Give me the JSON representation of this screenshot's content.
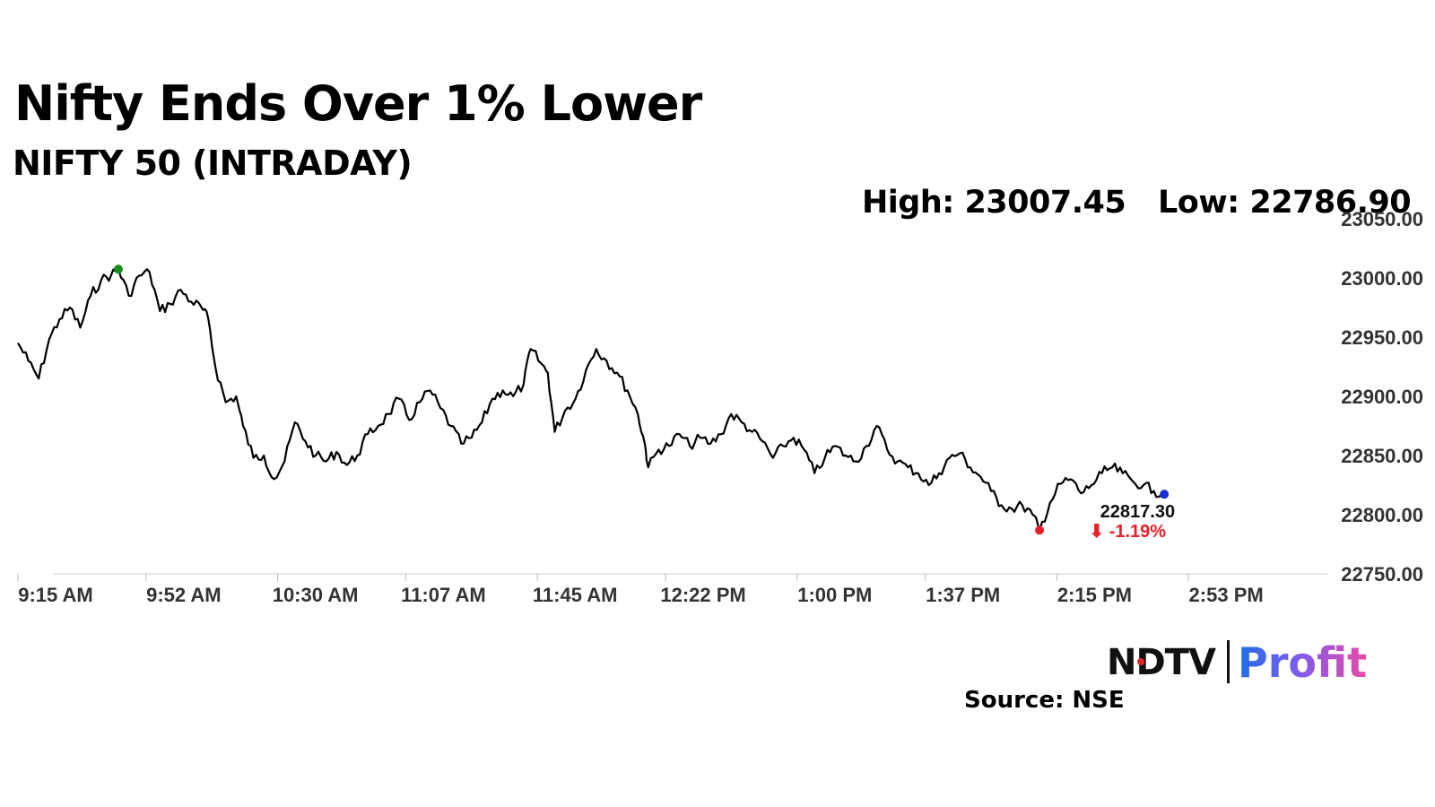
{
  "header": {
    "title": "Nifty Ends Over 1% Lower",
    "subtitle": "NIFTY 50 (INTRADAY)",
    "high": "High: 23007.45",
    "low": "Low: 22786.90"
  },
  "footer": {
    "source": "Source: NSE",
    "logo_ndtv": "NDTV",
    "logo_profit": "Profit"
  },
  "colors": {
    "line": "#000000",
    "high_marker": "#1a8a1a",
    "low_marker": "#e8202a",
    "last_marker": "#1a2ecc",
    "change": "#e8202a"
  },
  "chart_data": {
    "type": "line",
    "title": "NIFTY 50 (INTRADAY)",
    "xlabel": "",
    "ylabel": "",
    "x_ticks": [
      "9:15 AM",
      "9:52 AM",
      "10:30 AM",
      "11:07 AM",
      "11:45 AM",
      "12:22 PM",
      "1:00 PM",
      "1:37 PM",
      "2:15 PM",
      "2:53 PM"
    ],
    "y_ticks": [
      "22750.00",
      "22800.00",
      "22850.00",
      "22900.00",
      "22950.00",
      "23000.00",
      "23050.00"
    ],
    "ylim": [
      22750,
      23050
    ],
    "x_range": [
      "9:15 AM",
      "3:30 PM"
    ],
    "grid": false,
    "last_value_label": "22817.30",
    "change_label": "⬇ -1.19%",
    "series": [
      {
        "points": [
          [
            "9:15 AM",
            22945
          ],
          [
            "9:18 AM",
            22930
          ],
          [
            "9:21 AM",
            22915
          ],
          [
            "9:24 AM",
            22948
          ],
          [
            "9:27 AM",
            22965
          ],
          [
            "9:30 AM",
            22975
          ],
          [
            "9:33 AM",
            22958
          ],
          [
            "9:36 AM",
            22985
          ],
          [
            "9:39 AM",
            22998
          ],
          [
            "9:42 AM",
            23003
          ],
          [
            "9:44 AM",
            23007.45
          ],
          [
            "9:47 AM",
            22985
          ],
          [
            "9:50 AM",
            23002
          ],
          [
            "9:53 AM",
            23005
          ],
          [
            "9:56 AM",
            22972
          ],
          [
            "9:59 AM",
            22978
          ],
          [
            "10:02 AM",
            22990
          ],
          [
            "10:05 AM",
            22980
          ],
          [
            "10:08 AM",
            22975
          ],
          [
            "10:10 AM",
            22965
          ],
          [
            "10:12 AM",
            22925
          ],
          [
            "10:15 AM",
            22895
          ],
          [
            "10:18 AM",
            22900
          ],
          [
            "10:20 AM",
            22875
          ],
          [
            "10:23 AM",
            22848
          ],
          [
            "10:26 AM",
            22850
          ],
          [
            "10:29 AM",
            22830
          ],
          [
            "10:32 AM",
            22845
          ],
          [
            "10:35 AM",
            22878
          ],
          [
            "10:38 AM",
            22862
          ],
          [
            "10:41 AM",
            22850
          ],
          [
            "10:44 AM",
            22845
          ],
          [
            "10:47 AM",
            22853
          ],
          [
            "10:50 AM",
            22842
          ],
          [
            "10:53 AM",
            22850
          ],
          [
            "10:56 AM",
            22868
          ],
          [
            "10:59 AM",
            22875
          ],
          [
            "11:02 AM",
            22885
          ],
          [
            "11:05 AM",
            22898
          ],
          [
            "11:08 AM",
            22880
          ],
          [
            "11:11 AM",
            22895
          ],
          [
            "11:14 AM",
            22905
          ],
          [
            "11:17 AM",
            22890
          ],
          [
            "11:20 AM",
            22875
          ],
          [
            "11:23 AM",
            22860
          ],
          [
            "11:26 AM",
            22865
          ],
          [
            "11:29 AM",
            22878
          ],
          [
            "11:32 AM",
            22898
          ],
          [
            "11:35 AM",
            22905
          ],
          [
            "11:38 AM",
            22900
          ],
          [
            "11:41 AM",
            22910
          ],
          [
            "11:43 AM",
            22940
          ],
          [
            "11:46 AM",
            22928
          ],
          [
            "11:48 AM",
            22920
          ],
          [
            "11:50 AM",
            22870
          ],
          [
            "11:53 AM",
            22888
          ],
          [
            "11:56 AM",
            22898
          ],
          [
            "11:59 AM",
            22922
          ],
          [
            "12:02 PM",
            22940
          ],
          [
            "12:05 PM",
            22930
          ],
          [
            "12:08 PM",
            22920
          ],
          [
            "12:11 PM",
            22905
          ],
          [
            "12:14 PM",
            22885
          ],
          [
            "12:16 PM",
            22860
          ],
          [
            "12:17 PM",
            22840
          ],
          [
            "12:20 PM",
            22855
          ],
          [
            "12:23 PM",
            22858
          ],
          [
            "12:26 PM",
            22868
          ],
          [
            "12:29 PM",
            22858
          ],
          [
            "12:32 PM",
            22865
          ],
          [
            "12:35 PM",
            22860
          ],
          [
            "12:38 PM",
            22868
          ],
          [
            "12:41 PM",
            22885
          ],
          [
            "12:44 PM",
            22878
          ],
          [
            "12:47 PM",
            22870
          ],
          [
            "12:50 PM",
            22862
          ],
          [
            "12:53 PM",
            22848
          ],
          [
            "12:56 PM",
            22858
          ],
          [
            "12:59 PM",
            22865
          ],
          [
            "1:02 PM",
            22855
          ],
          [
            "1:05 PM",
            22835
          ],
          [
            "1:08 PM",
            22848
          ],
          [
            "1:11 PM",
            22858
          ],
          [
            "1:14 PM",
            22850
          ],
          [
            "1:17 PM",
            22845
          ],
          [
            "1:20 PM",
            22858
          ],
          [
            "1:23 PM",
            22875
          ],
          [
            "1:26 PM",
            22855
          ],
          [
            "1:29 PM",
            22845
          ],
          [
            "1:32 PM",
            22840
          ],
          [
            "1:35 PM",
            22835
          ],
          [
            "1:38 PM",
            22825
          ],
          [
            "1:41 PM",
            22835
          ],
          [
            "1:44 PM",
            22848
          ],
          [
            "1:47 PM",
            22852
          ],
          [
            "1:50 PM",
            22840
          ],
          [
            "1:53 PM",
            22832
          ],
          [
            "1:56 PM",
            22820
          ],
          [
            "1:59 PM",
            22808
          ],
          [
            "2:02 PM",
            22805
          ],
          [
            "2:05 PM",
            22808
          ],
          [
            "2:08 PM",
            22800
          ],
          [
            "2:10 PM",
            22786.9
          ],
          [
            "2:13 PM",
            22810
          ],
          [
            "2:16 PM",
            22826
          ],
          [
            "2:19 PM",
            22830
          ],
          [
            "2:22 PM",
            22818
          ],
          [
            "2:25 PM",
            22825
          ],
          [
            "2:28 PM",
            22835
          ],
          [
            "2:31 PM",
            22840
          ],
          [
            "2:34 PM",
            22835
          ],
          [
            "2:37 PM",
            22828
          ],
          [
            "2:40 PM",
            22825
          ],
          [
            "2:43 PM",
            22820
          ],
          [
            "2:46 PM",
            22817.3
          ]
        ]
      }
    ]
  }
}
